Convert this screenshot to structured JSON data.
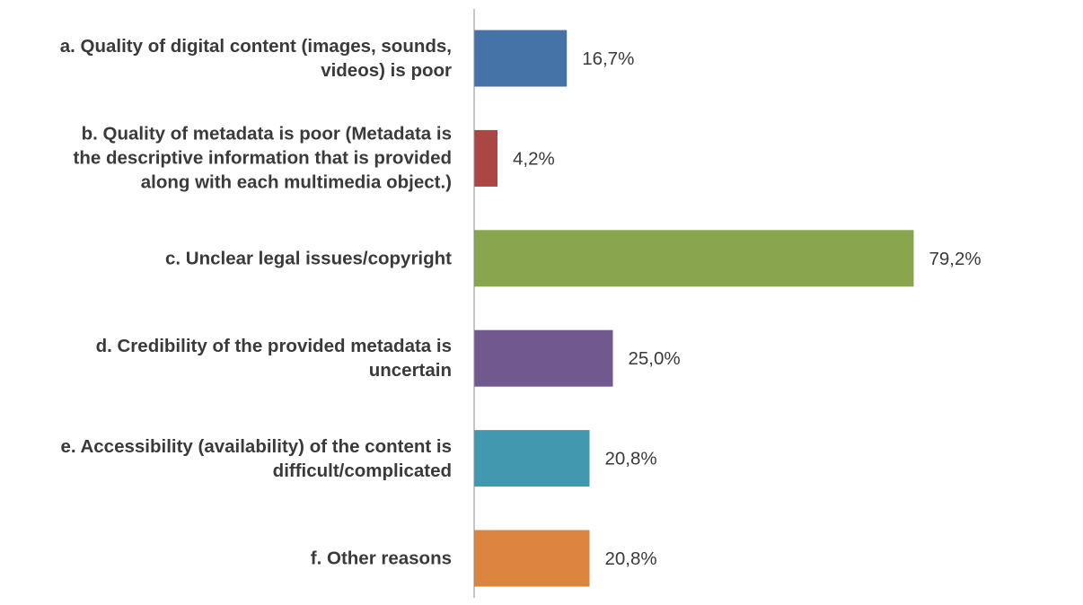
{
  "chart_data": {
    "type": "bar",
    "orientation": "horizontal",
    "categories": [
      "a. Quality of digital content (images, sounds,\nvideos) is poor",
      "b. Quality of metadata is poor (Metadata is\nthe descriptive information that is provided\nalong with each multimedia object.)",
      "c. Unclear legal issues/copyright",
      "d. Credibility of the provided metadata is\nuncertain",
      "e. Accessibility (availability) of the content is\ndifficult/complicated",
      "f. Other reasons"
    ],
    "values": [
      16.7,
      4.2,
      79.2,
      25.0,
      20.8,
      20.8
    ],
    "value_labels": [
      "16,7%",
      "4,2%",
      "79,2%",
      "25,0%",
      "20,8%",
      "20,8%"
    ],
    "colors": [
      "#4572A7",
      "#AA4643",
      "#89A54E",
      "#71588F",
      "#4198AF",
      "#DB843D"
    ],
    "xlim": [
      0,
      100
    ],
    "grid": false,
    "legend": "none",
    "title": "",
    "xlabel": "",
    "ylabel": ""
  }
}
